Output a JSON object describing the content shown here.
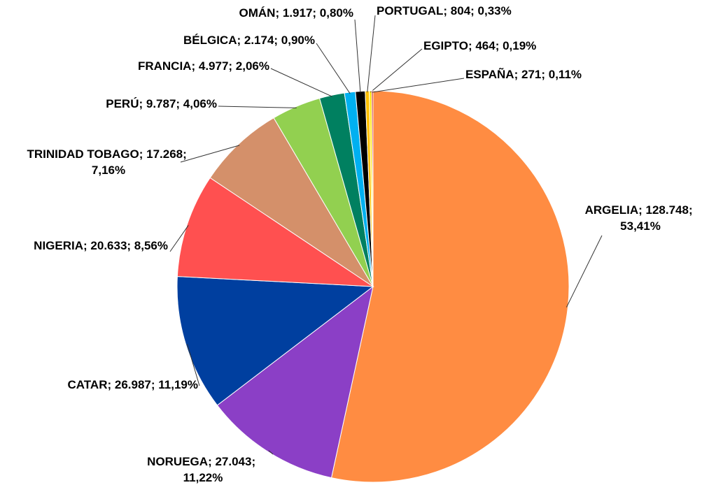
{
  "chart_data": {
    "type": "pie",
    "categories": [
      "ARGELIA",
      "NORUEGA",
      "CATAR",
      "NIGERIA",
      "TRINIDAD TOBAGO",
      "PERÚ",
      "FRANCIA",
      "BÉLGICA",
      "OMÁN",
      "PORTUGAL",
      "EGIPTO",
      "ESPAÑA"
    ],
    "values": [
      128748,
      27043,
      26987,
      20633,
      17268,
      9787,
      4977,
      2174,
      1917,
      804,
      464,
      271
    ],
    "value_labels": [
      "128.748",
      "27.043",
      "26.987",
      "20.633",
      "17.268",
      "9.787",
      "4.977",
      "2.174",
      "1.917",
      "804",
      "464",
      "271"
    ],
    "percents": [
      53.41,
      11.22,
      11.19,
      8.56,
      7.16,
      4.06,
      2.06,
      0.9,
      0.8,
      0.33,
      0.19,
      0.11
    ],
    "percent_labels": [
      "53,41%",
      "11,22%",
      "11,19%",
      "8,56%",
      "7,16%",
      "4,06%",
      "2,06%",
      "0,90%",
      "0,80%",
      "0,33%",
      "0,19%",
      "0,11%"
    ],
    "label_separator": "; ",
    "colors": [
      "#ff8c42",
      "#8b3fc6",
      "#003f9f",
      "#ff5050",
      "#d4906a",
      "#92d050",
      "#008060",
      "#00b0f0",
      "#000000",
      "#ffc000",
      "#ffe600",
      "#c00000"
    ]
  }
}
